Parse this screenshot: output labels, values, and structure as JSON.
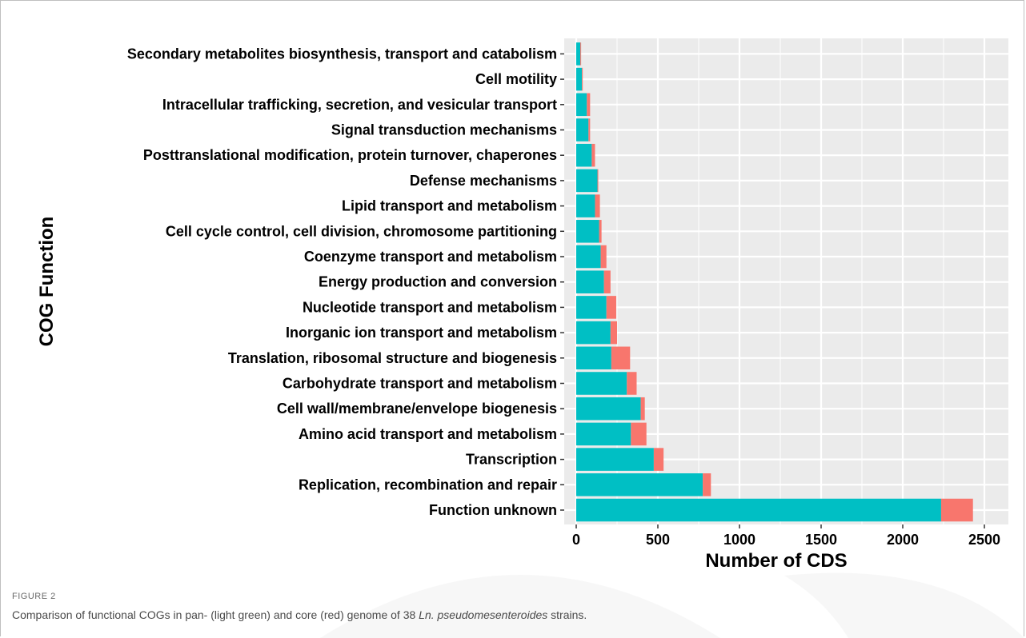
{
  "figure": {
    "label": "FIGURE 2",
    "caption_pre": "Comparison of functional COGs in pan- (light green) and core (red) genome of 38 ",
    "caption_italic": "Ln. pseudomesenteroides",
    "caption_post": " strains."
  },
  "colors": {
    "pan": "#00BFC4",
    "core": "#F8766D",
    "panel": "#EBEBEB",
    "grid": "#FFFFFF"
  },
  "chart_data": {
    "type": "bar",
    "orientation": "horizontal",
    "stacked": true,
    "title": "",
    "xlabel": "Number of CDS",
    "ylabel": "COG Function",
    "xlim": [
      0,
      2500
    ],
    "xticks": [
      0,
      500,
      1000,
      1500,
      2000,
      2500
    ],
    "grid": true,
    "legend": "none",
    "categories": [
      "Function unknown",
      "Replication, recombination and repair",
      "Transcription",
      "Amino acid transport and metabolism",
      "Cell wall/membrane/envelope biogenesis",
      "Carbohydrate transport and metabolism",
      "Translation, ribosomal structure and biogenesis",
      "Inorganic ion transport and metabolism",
      "Nucleotide transport and metabolism",
      "Energy production and conversion",
      "Coenzyme transport and metabolism",
      "Cell cycle control, cell division, chromosome partitioning",
      "Lipid transport and metabolism",
      "Defense mechanisms",
      "Posttranslational modification, protein turnover, chaperones",
      "Signal transduction mechanisms",
      "Intracellular trafficking, secretion, and vesicular transport",
      "Cell motility",
      "Secondary metabolites biosynthesis, transport and catabolism"
    ],
    "series": [
      {
        "values": [
          2235,
          775,
          475,
          335,
          395,
          310,
          215,
          210,
          185,
          170,
          150,
          140,
          115,
          130,
          95,
          75,
          65,
          35,
          25
        ]
      },
      {
        "values": [
          195,
          50,
          60,
          95,
          25,
          60,
          115,
          40,
          60,
          40,
          35,
          15,
          30,
          5,
          20,
          10,
          20,
          5,
          5
        ]
      }
    ]
  }
}
